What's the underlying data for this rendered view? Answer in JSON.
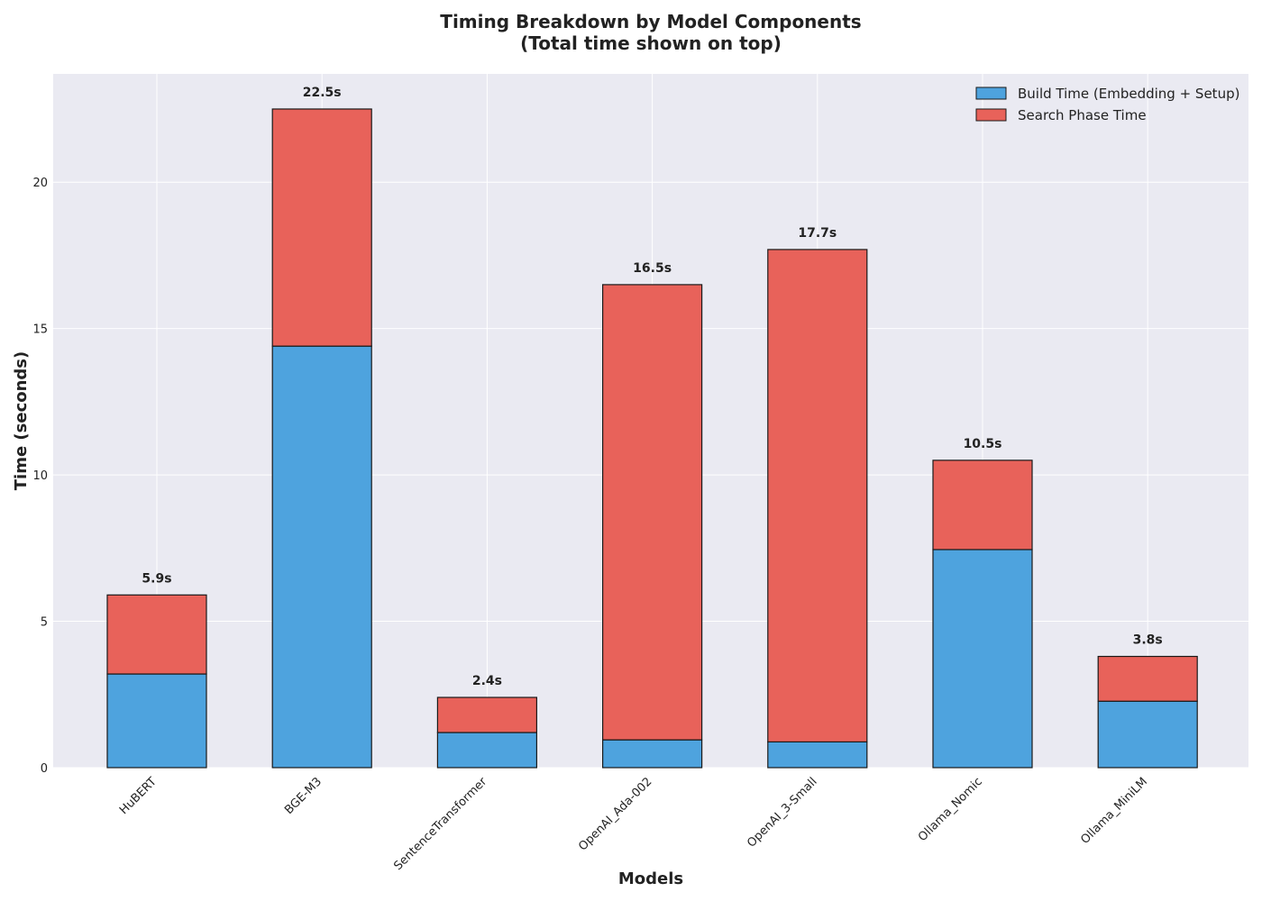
{
  "chart_data": {
    "type": "bar",
    "stacked": true,
    "title_line1": "Timing Breakdown by Model Components",
    "title_line2": "(Total time shown on top)",
    "xlabel": "Models",
    "ylabel": "Time (seconds)",
    "ylim": [
      0,
      23.7
    ],
    "yticks": [
      0,
      5,
      10,
      15,
      20
    ],
    "grid": true,
    "legend_position": "top-right",
    "categories": [
      "HuBERT",
      "BGE-M3",
      "SentenceTransformer",
      "OpenAI_Ada-002",
      "OpenAI_3-Small",
      "Ollama_Nomic",
      "Ollama_MiniLM"
    ],
    "series": [
      {
        "name": "Build Time (Embedding + Setup)",
        "color": "#4ea3de",
        "values": [
          3.2,
          14.4,
          1.2,
          0.95,
          0.88,
          7.45,
          2.27
        ]
      },
      {
        "name": "Search Phase Time",
        "color": "#e8625a",
        "values": [
          2.7,
          8.1,
          1.2,
          15.55,
          16.82,
          3.05,
          1.53
        ]
      }
    ],
    "total_labels": [
      "5.9s",
      "22.5s",
      "2.4s",
      "16.5s",
      "17.7s",
      "10.5s",
      "3.8s"
    ]
  }
}
